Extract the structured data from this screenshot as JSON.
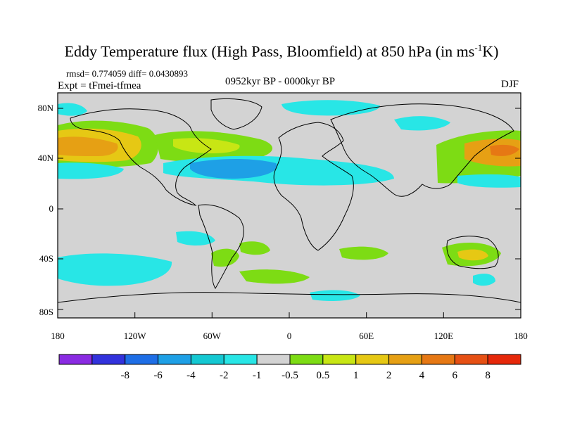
{
  "title_main": "Eddy Temperature flux (High Pass, Bloomfield) at 850 hPa (in ms",
  "title_sup": "-1",
  "title_end": "K)",
  "stats_line": "rmsd= 0.774059 diff= 0.0430893",
  "experiment_line": "Expt = tFmei-tfmea",
  "period_line": "0952kyr BP - 0000kyr BP",
  "season": "DJF",
  "lat_ticks": [
    "80N",
    "40N",
    "0",
    "40S",
    "80S"
  ],
  "lon_ticks": [
    "180",
    "120W",
    "60W",
    "0",
    "60E",
    "120E",
    "180"
  ],
  "colorbar": {
    "colors": [
      "#8a2be2",
      "#3232dc",
      "#1e6ee6",
      "#1ea0e6",
      "#14c8d2",
      "#28e6e6",
      "#d3d3d3",
      "#7ddc14",
      "#c8e614",
      "#e6c814",
      "#e6a014",
      "#e67814",
      "#e65014",
      "#e6280a"
    ],
    "labels": [
      "-8",
      "-6",
      "-4",
      "-2",
      "-1",
      "-0.5",
      "0.5",
      "1",
      "2",
      "4",
      "6",
      "8"
    ]
  },
  "map": {
    "ocean_land_fill": "#d3d3d3",
    "regions": [
      {
        "name": "north-pacific-positive",
        "level": "orange"
      },
      {
        "name": "north-atlantic-positive",
        "level": "yellow-green"
      },
      {
        "name": "atlantic-negative-band",
        "level": "blue"
      },
      {
        "name": "west-pacific-positive",
        "level": "orange"
      },
      {
        "name": "southern-ocean-negative",
        "level": "cyan"
      },
      {
        "name": "australia-positive",
        "level": "yellow"
      }
    ]
  }
}
